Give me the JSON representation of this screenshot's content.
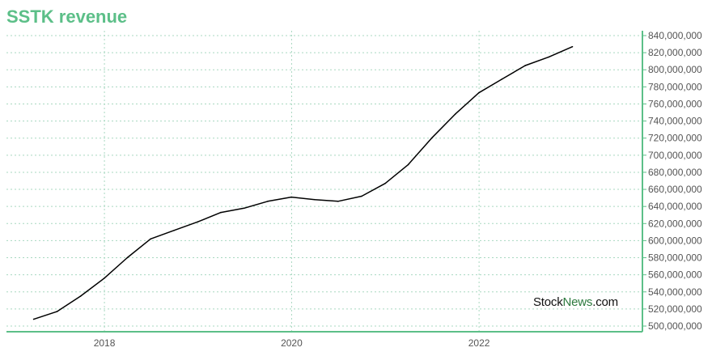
{
  "chart_data": {
    "type": "line",
    "title": "SSTK revenue",
    "xlabel": "",
    "ylabel": "",
    "x_ticks": [
      "2018",
      "2020",
      "2022"
    ],
    "y_ticks": [
      "500,000,000",
      "520,000,000",
      "540,000,000",
      "560,000,000",
      "580,000,000",
      "600,000,000",
      "620,000,000",
      "640,000,000",
      "660,000,000",
      "680,000,000",
      "700,000,000",
      "720,000,000",
      "740,000,000",
      "760,000,000",
      "780,000,000",
      "800,000,000",
      "820,000,000",
      "840,000,000"
    ],
    "ylim": [
      500000000,
      840000000
    ],
    "xlim": [
      "2016-12-15",
      "2023-09-30"
    ],
    "grid": true,
    "series": [
      {
        "color": "#000000",
        "x": [
          "2017-03-31",
          "2017-06-30",
          "2017-09-30",
          "2017-12-31",
          "2018-03-31",
          "2018-06-30",
          "2018-09-30",
          "2018-12-31",
          "2019-03-31",
          "2019-06-30",
          "2019-09-30",
          "2019-12-31",
          "2020-03-31",
          "2020-06-30",
          "2020-09-30",
          "2020-12-31",
          "2021-03-31",
          "2021-06-30",
          "2021-09-30",
          "2021-12-31",
          "2022-03-31",
          "2022-06-30",
          "2022-09-30",
          "2022-12-31"
        ],
        "values": [
          508000000,
          517000000,
          535000000,
          556000000,
          580000000,
          602000000,
          612000000,
          622000000,
          633000000,
          638000000,
          646000000,
          651000000,
          648000000,
          646000000,
          652000000,
          667000000,
          689000000,
          720000000,
          748000000,
          773000000,
          789000000,
          805000000,
          815000000,
          827000000
        ]
      }
    ]
  },
  "watermark": {
    "part1": "Stock",
    "part2": "News",
    "part3": ".com"
  },
  "colors": {
    "title": "#5cbf88",
    "axis": "#5cbf88",
    "grid": "#a8d8c0",
    "line": "#000000",
    "brand": "#2c7a3e"
  }
}
